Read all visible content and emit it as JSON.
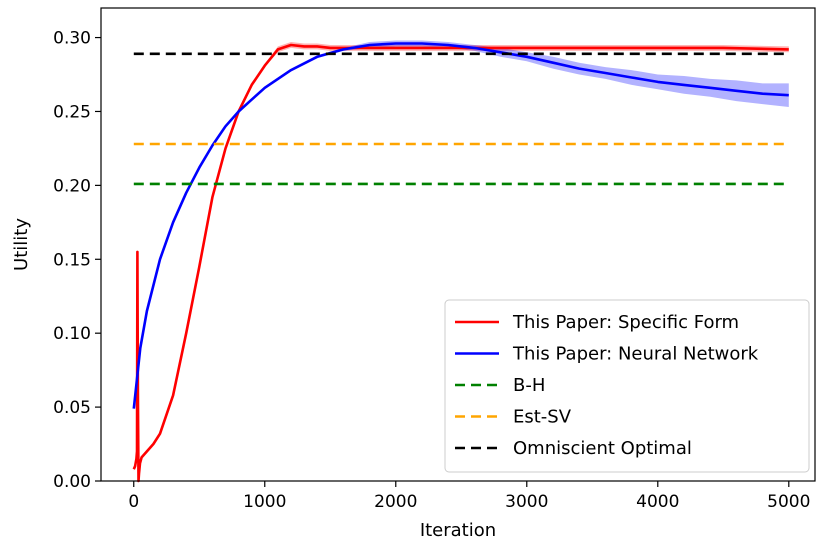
{
  "chart_data": {
    "type": "line",
    "xlabel": "Iteration",
    "ylabel": "Utility",
    "xlim": [
      -250,
      5200
    ],
    "ylim": [
      0.0,
      0.32
    ],
    "xticks": [
      0,
      1000,
      2000,
      3000,
      4000,
      5000
    ],
    "xtick_labels": [
      "0",
      "1000",
      "2000",
      "3000",
      "4000",
      "5000"
    ],
    "yticks": [
      0.0,
      0.05,
      0.1,
      0.15,
      0.2,
      0.25,
      0.3
    ],
    "ytick_labels": [
      "0.00",
      "0.05",
      "0.10",
      "0.15",
      "0.20",
      "0.25",
      "0.30"
    ],
    "grid": false,
    "legend_position": "lower right",
    "series": [
      {
        "name": "This Paper: Specific Form",
        "color": "#ff0000",
        "style": "solid",
        "band": true,
        "band_color": "#ff0000",
        "x": [
          0,
          10,
          20,
          25,
          28,
          32,
          36,
          40,
          48,
          60,
          100,
          150,
          200,
          300,
          400,
          500,
          600,
          700,
          800,
          900,
          1000,
          1100,
          1200,
          1300,
          1400,
          1500,
          2000,
          2500,
          3000,
          3500,
          4000,
          4500,
          5000
        ],
        "y": [
          0.008,
          0.01,
          0.015,
          0.02,
          0.155,
          0.06,
          0.0,
          0.005,
          0.012,
          0.016,
          0.02,
          0.025,
          0.032,
          0.058,
          0.1,
          0.145,
          0.192,
          0.225,
          0.25,
          0.268,
          0.281,
          0.292,
          0.295,
          0.294,
          0.294,
          0.293,
          0.293,
          0.293,
          0.293,
          0.293,
          0.293,
          0.293,
          0.292
        ],
        "band_half_width": [
          0.001,
          0.001,
          0.001,
          0.001,
          0.001,
          0.001,
          0.001,
          0.001,
          0.001,
          0.001,
          0.001,
          0.001,
          0.001,
          0.001,
          0.001,
          0.001,
          0.001,
          0.001,
          0.001,
          0.001,
          0.001,
          0.002,
          0.002,
          0.002,
          0.002,
          0.002,
          0.002,
          0.002,
          0.002,
          0.002,
          0.002,
          0.002,
          0.002
        ]
      },
      {
        "name": "This Paper: Neural Network",
        "color": "#0000ff",
        "style": "solid",
        "band": true,
        "band_color": "#0000ff",
        "x": [
          0,
          50,
          100,
          200,
          300,
          400,
          500,
          600,
          700,
          800,
          900,
          1000,
          1200,
          1400,
          1600,
          1800,
          2000,
          2200,
          2400,
          2600,
          2800,
          3000,
          3200,
          3400,
          3600,
          3800,
          4000,
          4200,
          4400,
          4600,
          4800,
          5000
        ],
        "y": [
          0.049,
          0.09,
          0.115,
          0.15,
          0.175,
          0.195,
          0.212,
          0.227,
          0.24,
          0.25,
          0.258,
          0.266,
          0.278,
          0.287,
          0.292,
          0.295,
          0.296,
          0.296,
          0.295,
          0.293,
          0.29,
          0.287,
          0.283,
          0.279,
          0.276,
          0.273,
          0.27,
          0.268,
          0.266,
          0.264,
          0.262,
          0.261
        ],
        "band_half_width": [
          0.001,
          0.001,
          0.001,
          0.001,
          0.001,
          0.001,
          0.001,
          0.001,
          0.001,
          0.001,
          0.001,
          0.001,
          0.001,
          0.001,
          0.001,
          0.002,
          0.002,
          0.002,
          0.002,
          0.002,
          0.003,
          0.003,
          0.004,
          0.004,
          0.004,
          0.005,
          0.005,
          0.006,
          0.006,
          0.007,
          0.007,
          0.008
        ]
      },
      {
        "name": "B-H",
        "color": "#008000",
        "style": "dashed",
        "x": [
          0,
          5000
        ],
        "y": [
          0.201,
          0.201
        ]
      },
      {
        "name": "Est-SV",
        "color": "#ffa500",
        "style": "dashed",
        "x": [
          0,
          5000
        ],
        "y": [
          0.228,
          0.228
        ]
      },
      {
        "name": "Omniscient Optimal",
        "color": "#000000",
        "style": "dashed",
        "x": [
          0,
          5000
        ],
        "y": [
          0.289,
          0.289
        ]
      }
    ]
  }
}
